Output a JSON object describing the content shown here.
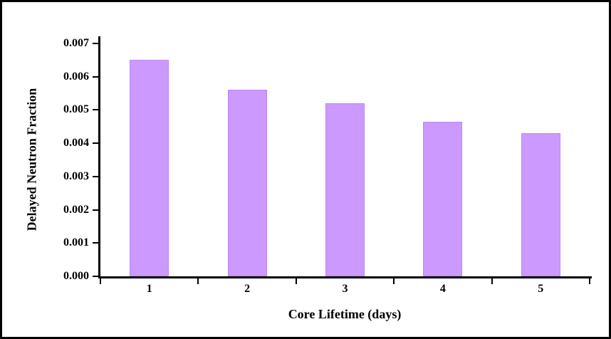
{
  "chart_data": {
    "type": "bar",
    "title": "",
    "categories": [
      "1",
      "2",
      "3",
      "4",
      "5"
    ],
    "values": [
      0.0065,
      0.0056,
      0.0052,
      0.00465,
      0.0043
    ],
    "xlabel": "Core Lifetime (days)",
    "ylabel": "Delayed Neutron Fraction",
    "ylim": [
      0,
      0.007
    ],
    "ytick_interval": 0.001,
    "ytick_labels": [
      "0.000",
      "0.001",
      "0.002",
      "0.003",
      "0.004",
      "0.005",
      "0.006",
      "0.007"
    ],
    "bar_color": "#CC99FF",
    "bar_border_color": "#BD87F0",
    "grid": false,
    "legend": "none",
    "frame_border_color": "#000000"
  }
}
